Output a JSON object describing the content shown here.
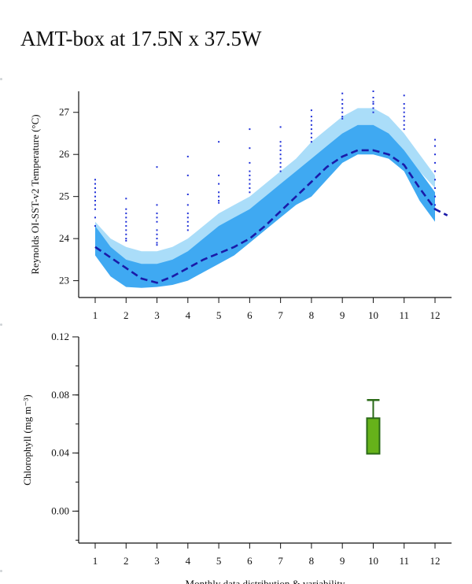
{
  "page": {
    "title": "AMT-box at 17.5N x 37.5W",
    "footer_text": "Monthly data distribution & variability"
  },
  "chart_data": [
    {
      "type": "area",
      "ylabel": "Reynolds OI-SST-v2 Temperature (°C)",
      "xlabel": "",
      "x_ticks": [
        1,
        2,
        3,
        4,
        5,
        6,
        7,
        8,
        9,
        10,
        11,
        12
      ],
      "xlim": [
        0.8,
        12.5
      ],
      "ylim": [
        22.6,
        27.5
      ],
      "y_ticks": [
        23,
        24,
        25,
        26,
        27
      ],
      "colors": {
        "outer_band": "#aaddf9",
        "inner_band": "#3fa9f2",
        "mean_line": "#1a1aa8",
        "points": "#2030d8"
      },
      "series": [
        {
          "role": "outer-band",
          "x": [
            1,
            1.5,
            2,
            2.5,
            3,
            3.5,
            4,
            4.5,
            5,
            5.5,
            6,
            6.5,
            7,
            7.5,
            8,
            8.5,
            9,
            9.5,
            10,
            10.5,
            11,
            11.5,
            12
          ],
          "upper": [
            24.4,
            24.0,
            23.8,
            23.7,
            23.7,
            23.8,
            24.0,
            24.3,
            24.6,
            24.8,
            25.0,
            25.3,
            25.6,
            25.9,
            26.3,
            26.6,
            26.9,
            27.1,
            27.1,
            26.9,
            26.5,
            26.0,
            25.5
          ],
          "lower": [
            23.8,
            23.4,
            23.2,
            23.1,
            23.2,
            23.3,
            23.5,
            23.8,
            24.1,
            24.3,
            24.6,
            24.9,
            25.2,
            25.5,
            25.8,
            26.1,
            26.5,
            26.7,
            26.7,
            26.5,
            26.1,
            25.6,
            25.2
          ]
        },
        {
          "role": "inner-band",
          "x": [
            1,
            1.5,
            2,
            2.5,
            3,
            3.5,
            4,
            4.5,
            5,
            5.5,
            6,
            6.5,
            7,
            7.5,
            8,
            8.5,
            9,
            9.5,
            10,
            10.5,
            11,
            11.5,
            12
          ],
          "upper": [
            24.3,
            23.8,
            23.5,
            23.4,
            23.4,
            23.5,
            23.7,
            24.0,
            24.3,
            24.5,
            24.7,
            25.0,
            25.3,
            25.6,
            25.9,
            26.2,
            26.5,
            26.7,
            26.7,
            26.5,
            26.1,
            25.6,
            25.1
          ],
          "lower": [
            23.6,
            23.1,
            22.85,
            22.83,
            22.85,
            22.9,
            23.0,
            23.2,
            23.4,
            23.6,
            23.9,
            24.2,
            24.5,
            24.8,
            25.0,
            25.4,
            25.8,
            26.0,
            26.0,
            25.9,
            25.6,
            24.9,
            24.4
          ]
        },
        {
          "role": "mean-line",
          "x": [
            1,
            1.5,
            2,
            2.5,
            3,
            3.5,
            4,
            4.5,
            5,
            5.5,
            6,
            6.5,
            7,
            7.5,
            8,
            8.5,
            9,
            9.5,
            10,
            10.5,
            11,
            11.5,
            12,
            12.4
          ],
          "y": [
            23.8,
            23.55,
            23.3,
            23.05,
            22.95,
            23.1,
            23.3,
            23.5,
            23.65,
            23.8,
            24.0,
            24.3,
            24.65,
            25.0,
            25.35,
            25.7,
            25.95,
            26.1,
            26.1,
            26.0,
            25.75,
            25.2,
            24.7,
            24.55
          ]
        }
      ],
      "points": [
        {
          "x": 1,
          "ys": [
            25.4,
            25.3,
            25.2,
            25.1,
            25.0,
            24.9,
            24.8,
            24.7,
            24.5,
            24.3
          ]
        },
        {
          "x": 2,
          "ys": [
            24.95,
            24.7,
            24.6,
            24.5,
            24.4,
            24.3,
            24.2,
            24.1,
            24.0,
            23.95
          ]
        },
        {
          "x": 3,
          "ys": [
            25.7,
            24.8,
            24.6,
            24.5,
            24.4,
            24.2,
            24.1,
            24.0,
            23.9,
            23.85
          ]
        },
        {
          "x": 4,
          "ys": [
            25.95,
            25.5,
            25.05,
            24.8,
            24.6,
            24.5,
            24.4,
            24.3,
            24.2
          ]
        },
        {
          "x": 5,
          "ys": [
            26.3,
            25.5,
            25.3,
            25.1,
            25.0,
            24.9,
            24.85
          ]
        },
        {
          "x": 6,
          "ys": [
            26.6,
            26.15,
            25.8,
            25.6,
            25.5,
            25.4,
            25.3,
            25.2,
            25.1
          ]
        },
        {
          "x": 7,
          "ys": [
            26.65,
            26.3,
            26.2,
            26.1,
            26.0,
            25.9,
            25.8,
            25.7,
            25.6
          ]
        },
        {
          "x": 8,
          "ys": [
            27.05,
            26.9,
            26.8,
            26.7,
            26.6,
            26.5,
            26.4,
            26.3
          ]
        },
        {
          "x": 9,
          "ys": [
            27.45,
            27.3,
            27.2,
            27.1,
            27.0,
            26.9,
            26.85
          ]
        },
        {
          "x": 10,
          "ys": [
            27.5,
            27.35,
            27.25,
            27.2,
            27.1,
            27.0
          ]
        },
        {
          "x": 11,
          "ys": [
            27.4,
            27.2,
            27.1,
            27.0,
            26.9,
            26.8,
            26.7,
            26.6
          ]
        },
        {
          "x": 12,
          "ys": [
            26.35,
            26.2,
            26.0,
            25.8,
            25.6,
            25.4,
            25.2,
            25.0,
            24.8
          ]
        }
      ]
    },
    {
      "type": "box",
      "ylabel": "Chlorophyll (mg m⁻³)",
      "xlabel": "Monthly data distribution & variability",
      "x_ticks": [
        1,
        2,
        3,
        4,
        5,
        6,
        7,
        8,
        9,
        10,
        11,
        12
      ],
      "xlim": [
        0.5,
        12.6
      ],
      "ylim": [
        -0.022,
        0.12
      ],
      "y_ticks": [
        "0.00",
        "0.04",
        "0.08",
        "0.12"
      ],
      "colors": {
        "box_fill": "#66b21a",
        "box_stroke": "#2a6a17"
      },
      "boxes": [
        {
          "x": 10,
          "q1": 0.0395,
          "q3": 0.064,
          "whisker_high": 0.0765
        }
      ]
    }
  ]
}
